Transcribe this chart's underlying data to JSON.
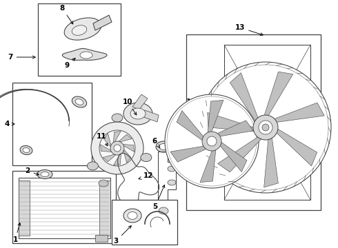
{
  "bg_color": "#ffffff",
  "line_color": "#404040",
  "label_color": "#000000",
  "fig_width": 4.9,
  "fig_height": 3.6,
  "dpi": 100
}
